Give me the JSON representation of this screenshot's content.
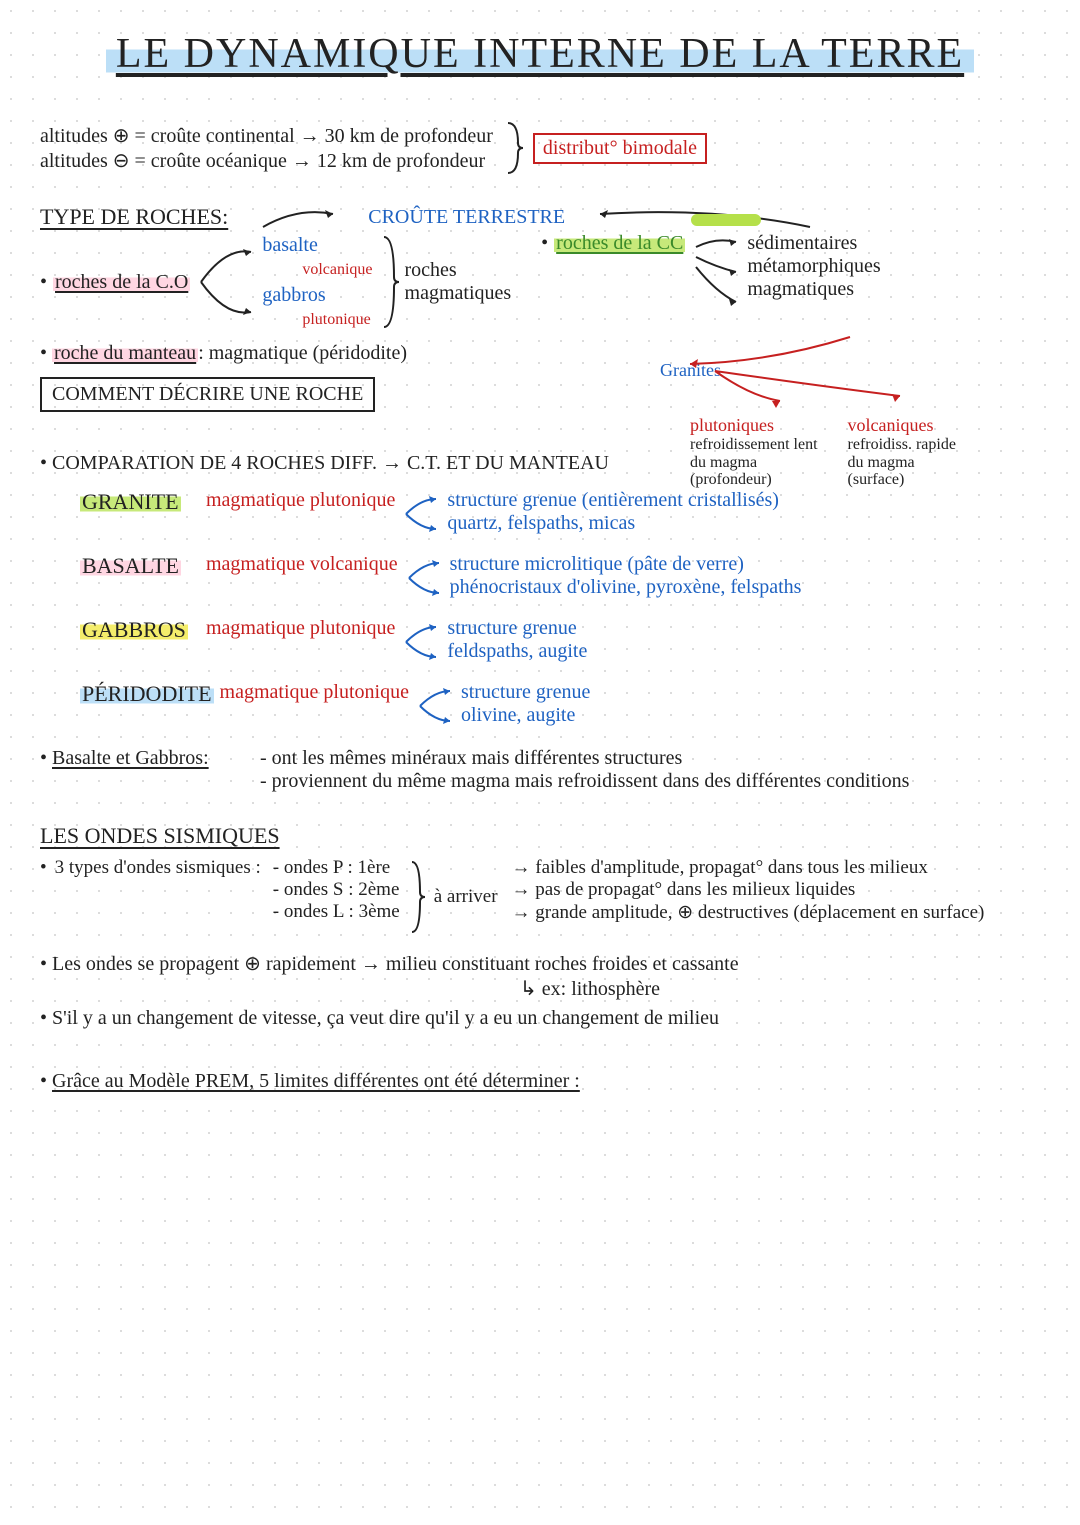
{
  "title": "LE DYNAMIQUE INTERNE DE LA TERRE",
  "altitudes": {
    "plus": "altitudes ⊕ = croûte continental → 30 km de profondeur",
    "minus": "altitudes ⊖ = croûte océanique → 12 km de profondeur",
    "bracket_note": "distribut° bimodale"
  },
  "section_types": {
    "heading": "TYPE DE ROCHES:",
    "croute_terrestre": "CROÛTE TERRESTRE",
    "roches_co": "roches de la C.O",
    "basalte": "basalte",
    "volcanique": "volcanique",
    "gabbros": "gabbros",
    "plutonique": "plutonique",
    "roches_magmatiques": "roches\nmagmatiques",
    "roches_cc": "roches de la CC",
    "cc_list": {
      "a": "sédimentaires",
      "b": "métamorphiques",
      "c": "magmatiques"
    },
    "granites": "Granites",
    "plutoniques": "plutoniques",
    "plut_sub": "refroidissement lent\ndu magma\n(profondeur)",
    "volcaniques": "volcaniques",
    "volc_sub": "refroidiss. rapide\ndu magma\n(surface)",
    "roche_manteau": "roche du manteau",
    "roche_manteau_value": ": magmatique (péridodite)",
    "comment_decrire": "COMMENT DÉCRIRE UNE ROCHE"
  },
  "comparison": {
    "heading": "COMPARATION DE 4 ROCHES DIFF. → C.T. ET DU MANTEAU",
    "rocks": [
      {
        "name": "GRANITE",
        "name_hl": "hl-green",
        "type": "magmatique plutonique",
        "line1": "structure grenue (entièrement cristallisés)",
        "line2": "quartz, felspaths, micas"
      },
      {
        "name": "BASALTE",
        "name_hl": "hl-pink",
        "type": "magmatique volcanique",
        "line1": "structure microlitique (pâte de verre)",
        "line2": "phénocristaux d'olivine, pyroxène, felspaths"
      },
      {
        "name": "GABBROS",
        "name_hl": "hl-yellow",
        "type": "magmatique plutonique",
        "line1": "structure grenue",
        "line2": "feldspaths, augite"
      },
      {
        "name": "PÉRIDODITE",
        "name_hl": "hl-blue",
        "type": "magmatique plutonique",
        "line1": "structure grenue",
        "line2": "olivine, augite"
      }
    ],
    "basalte_gabbros_title": "Basalte et Gabbros:",
    "bg_line1": "- ont les mêmes minéraux mais différentes structures",
    "bg_line2": "- proviennent du même magma mais refroidissent dans des différentes conditions"
  },
  "ondes": {
    "heading": "LES ONDES SISMIQUES",
    "intro": "3 types d'ondes sismiques :",
    "p": "- ondes P : 1ère",
    "s": "- ondes S : 2ème",
    "l": "- ondes L : 3ème",
    "a_arriver": "à arriver",
    "desc_p": "→ faibles d'amplitude, propagat° dans tous les milieux",
    "desc_s": "→ pas de propagat° dans les milieux liquides",
    "desc_l": "→ grande amplitude, ⊕ destructives (déplacement en surface)",
    "prop1": "Les ondes se propagent ⊕ rapidement → milieu constituant roches froides et cassante",
    "prop1_sub": "↳ ex: lithosphère",
    "prop2": "S'il y a un changement de vitesse, ça veut dire qu'il y a eu un changement de milieu",
    "prem": "Grâce au Modèle PREM, 5 limites différentes ont été déterminer :"
  },
  "colors": {
    "black": "#222222",
    "blue": "#1e62c2",
    "red": "#c62020",
    "green": "#3a8a2a",
    "hl_pink": "#ffd6e2",
    "hl_green": "#c7e97a",
    "hl_yellow": "#f4ed6b",
    "hl_blue": "#bcdff7",
    "dot_grid": "#d0d0d0",
    "bg": "#ffffff"
  }
}
